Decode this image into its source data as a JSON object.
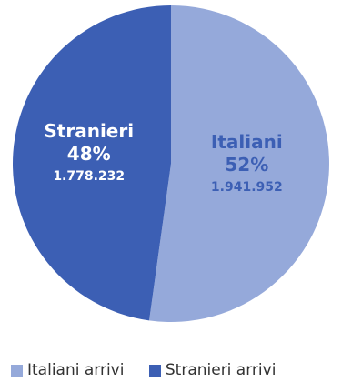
{
  "chart_data": {
    "type": "pie",
    "title": "",
    "slices": [
      {
        "label": "Italiani",
        "percent_label": "52%",
        "value": 1941952,
        "value_label": "1.941.952",
        "color": "#95a9da"
      },
      {
        "label": "Stranieri",
        "percent_label": "48%",
        "value": 1778232,
        "value_label": "1.778.232",
        "color": "#3c5fb4"
      }
    ],
    "legend": {
      "position": "bottom",
      "entries": [
        {
          "label": "Italiani arrivi",
          "color": "#95a9da"
        },
        {
          "label": "Stranieri arrivi",
          "color": "#3c5fb4"
        }
      ]
    },
    "label_color": "#ffffff",
    "label_color_light_slice": "#3c5fb4"
  }
}
